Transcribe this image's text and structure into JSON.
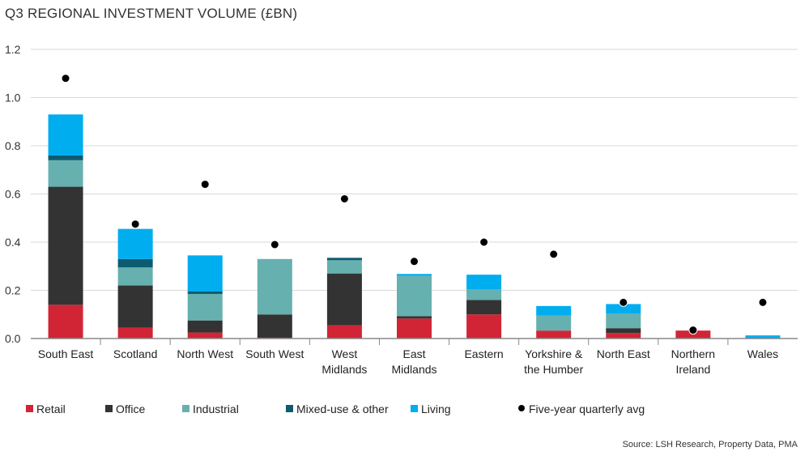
{
  "chart_data": {
    "type": "bar",
    "stacked": true,
    "title": "Q3 REGIONAL INVESTMENT VOLUME (£BN)",
    "xlabel": "",
    "ylabel": "",
    "ylim": [
      0,
      1.2
    ],
    "yticks": [
      "0.0",
      "0.2",
      "0.4",
      "0.6",
      "0.8",
      "1.0",
      "1.2"
    ],
    "grid": true,
    "legend": "bottom",
    "categories": [
      [
        "South East"
      ],
      [
        "Scotland"
      ],
      [
        "North West"
      ],
      [
        "South West"
      ],
      [
        "West",
        "Midlands"
      ],
      [
        "East",
        "Midlands"
      ],
      [
        "Eastern"
      ],
      [
        "Yorkshire &",
        "the Humber"
      ],
      [
        "North East"
      ],
      [
        "Northern",
        "Ireland"
      ],
      [
        "Wales"
      ]
    ],
    "series": [
      {
        "name": "Retail",
        "color": "#d12536",
        "values": [
          0.14,
          0.045,
          0.025,
          0.003,
          0.055,
          0.083,
          0.1,
          0.033,
          0.023,
          0.033,
          0
        ]
      },
      {
        "name": "Office",
        "color": "#333333",
        "values": [
          0.49,
          0.175,
          0.05,
          0.097,
          0.215,
          0.01,
          0.06,
          0,
          0.02,
          0,
          0
        ]
      },
      {
        "name": "Industrial",
        "color": "#66b0b0",
        "values": [
          0.11,
          0.075,
          0.11,
          0.23,
          0.055,
          0.167,
          0.045,
          0.062,
          0.06,
          0,
          0
        ]
      },
      {
        "name": "Mixed-use & other",
        "color": "#0d5b70",
        "values": [
          0.02,
          0.035,
          0.01,
          0,
          0.01,
          0,
          0,
          0,
          0,
          0,
          0
        ]
      },
      {
        "name": "Living",
        "color": "#00adef",
        "values": [
          0.17,
          0.125,
          0.15,
          0,
          0,
          0.008,
          0.06,
          0.04,
          0.04,
          0,
          0.013
        ]
      }
    ],
    "markers": {
      "name": "Five-year quarterly avg",
      "color": "#000000",
      "values": [
        1.08,
        0.475,
        0.64,
        0.39,
        0.58,
        0.32,
        0.4,
        0.35,
        0.15,
        0.035,
        0.15
      ]
    }
  },
  "source": "Source: LSH Research, Property Data, PMA"
}
